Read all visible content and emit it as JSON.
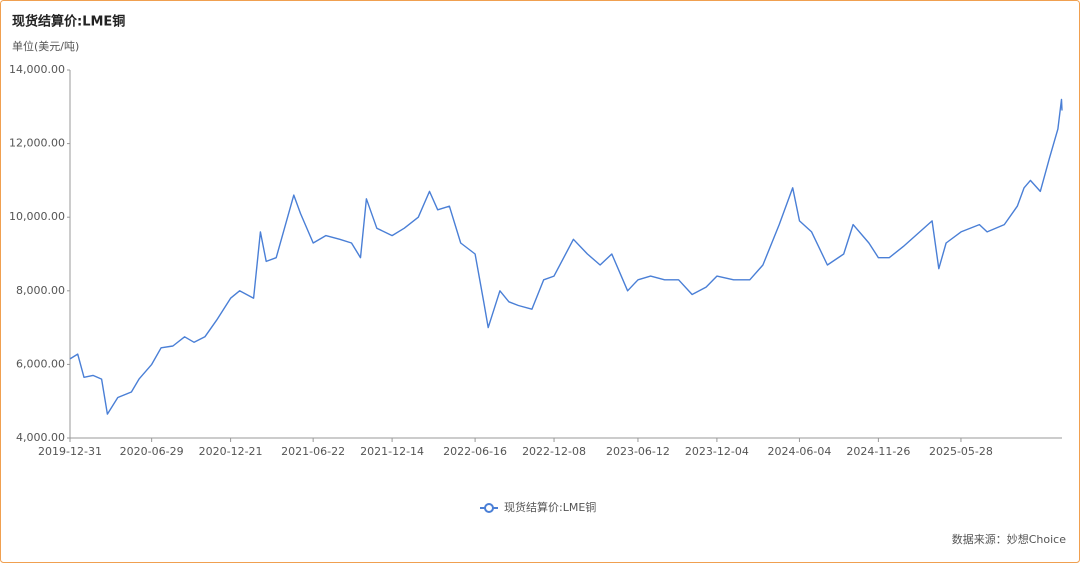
{
  "chart_data": {
    "type": "line",
    "title": "现货结算价:LME铜",
    "y_label": "单位(美元/吨)",
    "source": "数据来源：妙想Choice",
    "x": [
      "2019-12-31",
      "2020-01-17",
      "2020-01-31",
      "2020-02-20",
      "2020-03-10",
      "2020-03-23",
      "2020-04-15",
      "2020-05-15",
      "2020-06-01",
      "2020-06-29",
      "2020-07-20",
      "2020-08-15",
      "2020-09-10",
      "2020-10-01",
      "2020-10-25",
      "2020-11-20",
      "2020-12-21",
      "2021-01-10",
      "2021-02-10",
      "2021-02-25",
      "2021-03-10",
      "2021-04-01",
      "2021-05-10",
      "2021-05-25",
      "2021-06-22",
      "2021-07-20",
      "2021-08-20",
      "2021-09-15",
      "2021-10-05",
      "2021-10-18",
      "2021-11-10",
      "2021-12-14",
      "2022-01-10",
      "2022-02-10",
      "2022-03-07",
      "2022-03-25",
      "2022-04-20",
      "2022-05-15",
      "2022-06-16",
      "2022-07-05",
      "2022-07-15",
      "2022-08-10",
      "2022-08-30",
      "2022-09-20",
      "2022-10-20",
      "2022-11-15",
      "2022-12-08",
      "2023-01-20",
      "2023-02-20",
      "2023-03-20",
      "2023-04-15",
      "2023-05-20",
      "2023-06-12",
      "2023-07-10",
      "2023-08-10",
      "2023-09-10",
      "2023-10-10",
      "2023-11-10",
      "2023-12-04",
      "2024-01-10",
      "2024-02-15",
      "2024-03-15",
      "2024-04-20",
      "2024-05-20",
      "2024-06-04",
      "2024-07-01",
      "2024-08-05",
      "2024-09-10",
      "2024-10-01",
      "2024-11-05",
      "2024-11-26",
      "2024-12-20",
      "2025-01-20",
      "2025-03-25",
      "2025-04-09",
      "2025-04-25",
      "2025-05-28",
      "2025-07-08",
      "2025-07-25",
      "2025-09-01",
      "2025-09-30",
      "2025-10-15",
      "2025-10-29",
      "2025-11-20",
      "2025-12-10",
      "2025-12-29",
      "2026-01-06",
      "2026-01-07"
    ],
    "series": [
      {
        "name": "现货结算价:LME铜",
        "color": "#4a7fd6",
        "values": [
          6150,
          6280,
          5650,
          5700,
          5600,
          4650,
          5100,
          5250,
          5600,
          6000,
          6450,
          6500,
          6750,
          6600,
          6750,
          7200,
          7800,
          8000,
          7800,
          9600,
          8800,
          8900,
          10600,
          10100,
          9300,
          9500,
          9400,
          9300,
          8900,
          10500,
          9700,
          9500,
          9700,
          10000,
          10700,
          10200,
          10300,
          9300,
          9000,
          7700,
          7000,
          8000,
          7700,
          7600,
          7500,
          8300,
          8400,
          9400,
          9000,
          8700,
          9000,
          8000,
          8300,
          8400,
          8300,
          8300,
          7900,
          8100,
          8400,
          8300,
          8300,
          8700,
          9800,
          10800,
          9900,
          9600,
          8700,
          9000,
          9800,
          9300,
          8900,
          8900,
          9200,
          9900,
          8600,
          9300,
          9600,
          9800,
          9600,
          9800,
          10300,
          10800,
          11000,
          10700,
          11600,
          12400,
          13200,
          12900
        ]
      }
    ],
    "xlim": [
      "2019-12-31",
      "2026-01-07"
    ],
    "xticks": [
      "2019-12-31",
      "2020-06-29",
      "2020-12-21",
      "2021-06-22",
      "2021-12-14",
      "2022-06-16",
      "2022-12-08",
      "2023-06-12",
      "2023-12-04",
      "2024-06-04",
      "2024-11-26",
      "2025-05-28"
    ],
    "ylim": [
      4000,
      14000
    ],
    "yticks": [
      {
        "value": 4000,
        "label": "4,000.00"
      },
      {
        "value": 6000,
        "label": "6,000.00"
      },
      {
        "value": 8000,
        "label": "8,000.00"
      },
      {
        "value": 10000,
        "label": "10,000.00"
      },
      {
        "value": 12000,
        "label": "12,000.00"
      },
      {
        "value": 14000,
        "label": "14,000.00"
      }
    ],
    "grid": false
  }
}
